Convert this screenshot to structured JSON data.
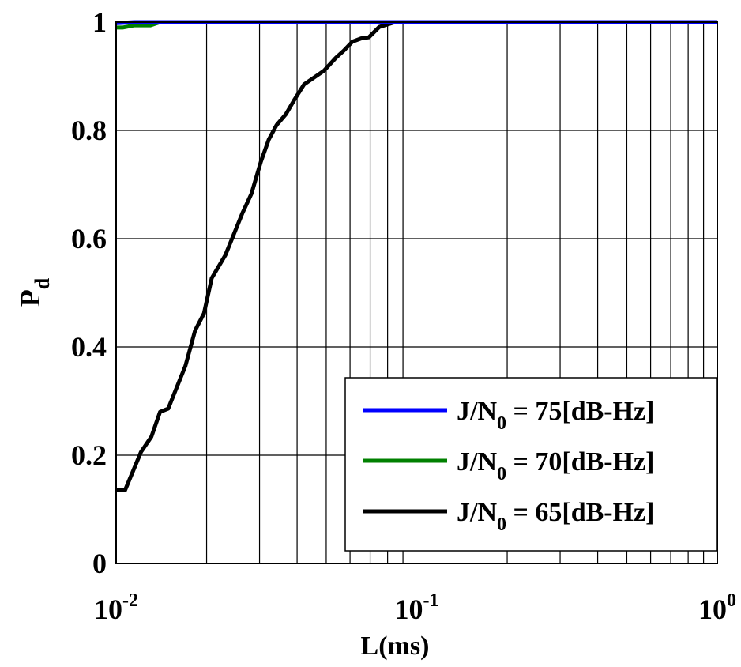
{
  "chart_data": {
    "type": "line",
    "title": "",
    "xlabel": "L(ms)",
    "ylabel": {
      "main": "P",
      "sub": "d"
    },
    "xscale": "log",
    "xlim": [
      0.01,
      1
    ],
    "ylim": [
      0,
      1
    ],
    "grid": true,
    "legend_position": "bottom-right",
    "xticks": [
      {
        "value": 0.01,
        "base": "10",
        "exp": "-2"
      },
      {
        "value": 0.1,
        "base": "10",
        "exp": "-1"
      },
      {
        "value": 1,
        "base": "10",
        "exp": "0"
      }
    ],
    "yticks": [
      {
        "value": 0,
        "label": "0"
      },
      {
        "value": 0.2,
        "label": "0.2"
      },
      {
        "value": 0.4,
        "label": "0.4"
      },
      {
        "value": 0.6,
        "label": "0.6"
      },
      {
        "value": 0.8,
        "label": "0.8"
      },
      {
        "value": 1,
        "label": "1"
      }
    ],
    "series": [
      {
        "name": "J/N0 = 75[dB-Hz]",
        "legend": {
          "pre": "J/N",
          "sub": "0",
          "post": " = 75[dB-Hz]"
        },
        "color": "#0000ff",
        "x": [
          0.01,
          0.0115,
          0.013,
          1
        ],
        "y": [
          0.998,
          1,
          1,
          1
        ]
      },
      {
        "name": "J/N0 = 70[dB-Hz]",
        "legend": {
          "pre": "J/N",
          "sub": "0",
          "post": " = 70[dB-Hz]"
        },
        "color": "#008000",
        "x": [
          0.01,
          0.0105,
          0.0115,
          0.013,
          0.014,
          1
        ],
        "y": [
          0.99,
          0.99,
          0.994,
          0.994,
          1,
          1
        ]
      },
      {
        "name": "J/N0 = 65[dB-Hz]",
        "legend": {
          "pre": "J/N",
          "sub": "0",
          "post": " = 65[dB-Hz]"
        },
        "color": "#000000",
        "x": [
          0.01,
          0.0107,
          0.0121,
          0.0131,
          0.014,
          0.0149,
          0.017,
          0.0183,
          0.0196,
          0.0208,
          0.0231,
          0.0263,
          0.0282,
          0.0303,
          0.0322,
          0.0342,
          0.0367,
          0.0393,
          0.0422,
          0.0462,
          0.0491,
          0.0538,
          0.0571,
          0.0611,
          0.0653,
          0.0693,
          0.075,
          0.0847,
          1
        ],
        "y": [
          0.135,
          0.135,
          0.206,
          0.234,
          0.28,
          0.286,
          0.365,
          0.43,
          0.462,
          0.527,
          0.57,
          0.647,
          0.683,
          0.742,
          0.783,
          0.81,
          0.83,
          0.858,
          0.885,
          0.9,
          0.91,
          0.934,
          0.947,
          0.964,
          0.97,
          0.972,
          0.991,
          1,
          1
        ]
      }
    ]
  }
}
